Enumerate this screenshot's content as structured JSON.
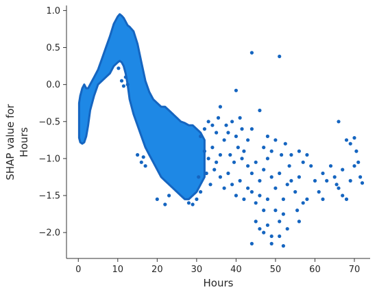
{
  "chart_data": {
    "type": "scatter",
    "title": "",
    "xlabel": "Hours",
    "ylabel_lines": [
      "SHAP value for",
      "Hours"
    ],
    "xlim": [
      -3,
      74
    ],
    "ylim": [
      -2.35,
      1.05
    ],
    "xticks": [
      0,
      10,
      20,
      30,
      40,
      50,
      60,
      70
    ],
    "xtick_labels": [
      "0",
      "10",
      "20",
      "30",
      "40",
      "50",
      "60",
      "70"
    ],
    "yticks": [
      1.0,
      0.5,
      0.0,
      -0.5,
      -1.0,
      -1.5,
      -2.0
    ],
    "ytick_labels": [
      "1.0",
      "0.5",
      "0.0",
      "−0.5",
      "−1.0",
      "−1.5",
      "−2.0"
    ],
    "grid": false,
    "colors": {
      "dense": "#1e88e5",
      "sparse": "#1565c0",
      "axis": "#333333"
    },
    "dense_band": {
      "x": [
        0.2,
        0.5,
        1,
        1.5,
        2,
        2.5,
        3,
        4,
        5,
        6,
        7,
        8,
        9,
        10,
        10.5,
        11,
        11.5,
        12,
        12.5,
        13,
        14,
        15,
        16,
        17,
        18,
        19,
        20,
        21,
        22,
        23,
        24,
        25,
        26,
        27,
        28,
        29,
        30,
        31,
        32
      ],
      "y_top": [
        -0.25,
        -0.15,
        -0.05,
        0.0,
        -0.05,
        -0.05,
        0.0,
        0.1,
        0.2,
        0.35,
        0.5,
        0.65,
        0.82,
        0.92,
        0.95,
        0.93,
        0.9,
        0.85,
        0.8,
        0.78,
        0.72,
        0.55,
        0.3,
        0.05,
        -0.1,
        -0.2,
        -0.25,
        -0.3,
        -0.3,
        -0.35,
        -0.4,
        -0.45,
        -0.5,
        -0.52,
        -0.55,
        -0.55,
        -0.6,
        -0.65,
        -0.75
      ],
      "y_bottom": [
        -0.72,
        -0.78,
        -0.8,
        -0.78,
        -0.7,
        -0.55,
        -0.35,
        -0.15,
        0.0,
        0.05,
        0.1,
        0.15,
        0.25,
        0.3,
        0.32,
        0.3,
        0.25,
        0.15,
        0.0,
        -0.2,
        -0.4,
        -0.55,
        -0.7,
        -0.85,
        -0.95,
        -1.05,
        -1.15,
        -1.25,
        -1.3,
        -1.35,
        -1.4,
        -1.45,
        -1.5,
        -1.55,
        -1.55,
        -1.5,
        -1.45,
        -1.35,
        -1.25
      ]
    },
    "points": [
      {
        "x": 10.2,
        "y": 0.22
      },
      {
        "x": 11,
        "y": 0.05
      },
      {
        "x": 11.5,
        "y": -0.02
      },
      {
        "x": 12.5,
        "y": 0.0
      },
      {
        "x": 12,
        "y": 0.1
      },
      {
        "x": 15,
        "y": -0.95
      },
      {
        "x": 16,
        "y": -1.05
      },
      {
        "x": 17,
        "y": -1.1
      },
      {
        "x": 16.5,
        "y": -0.98
      },
      {
        "x": 20,
        "y": -1.55
      },
      {
        "x": 22,
        "y": -1.62
      },
      {
        "x": 23,
        "y": -1.5
      },
      {
        "x": 28,
        "y": -1.6
      },
      {
        "x": 29,
        "y": -1.62
      },
      {
        "x": 30,
        "y": -1.55
      },
      {
        "x": 31,
        "y": -1.45
      },
      {
        "x": 30.5,
        "y": -1.25
      },
      {
        "x": 31,
        "y": -0.7
      },
      {
        "x": 32,
        "y": -0.6
      },
      {
        "x": 33,
        "y": -0.5
      },
      {
        "x": 34,
        "y": -0.55
      },
      {
        "x": 35,
        "y": -0.65
      },
      {
        "x": 35.5,
        "y": -0.45
      },
      {
        "x": 32,
        "y": -0.9
      },
      {
        "x": 33,
        "y": -1.0
      },
      {
        "x": 34,
        "y": -0.85
      },
      {
        "x": 35,
        "y": -1.05
      },
      {
        "x": 36,
        "y": -0.95
      },
      {
        "x": 37,
        "y": -0.75
      },
      {
        "x": 32.5,
        "y": -1.2
      },
      {
        "x": 33.5,
        "y": -1.35
      },
      {
        "x": 34.5,
        "y": -1.15
      },
      {
        "x": 36,
        "y": -1.25
      },
      {
        "x": 37,
        "y": -1.4
      },
      {
        "x": 38,
        "y": -1.2
      },
      {
        "x": 36,
        "y": -0.3
      },
      {
        "x": 37.5,
        "y": -0.55
      },
      {
        "x": 38,
        "y": -0.65
      },
      {
        "x": 39,
        "y": -0.5
      },
      {
        "x": 40,
        "y": -0.7
      },
      {
        "x": 41,
        "y": -0.45
      },
      {
        "x": 38.5,
        "y": -0.95
      },
      {
        "x": 39.5,
        "y": -1.05
      },
      {
        "x": 40.5,
        "y": -0.85
      },
      {
        "x": 41.5,
        "y": -1.0
      },
      {
        "x": 42,
        "y": -0.9
      },
      {
        "x": 39,
        "y": -1.35
      },
      {
        "x": 40,
        "y": -1.5
      },
      {
        "x": 41,
        "y": -1.3
      },
      {
        "x": 42,
        "y": -1.55
      },
      {
        "x": 43,
        "y": -1.4
      },
      {
        "x": 40,
        "y": -0.08
      },
      {
        "x": 41.5,
        "y": -0.6
      },
      {
        "x": 43,
        "y": -0.75
      },
      {
        "x": 44,
        "y": -0.6
      },
      {
        "x": 44,
        "y": 0.43
      },
      {
        "x": 51,
        "y": 0.38
      },
      {
        "x": 43,
        "y": -1.1
      },
      {
        "x": 44,
        "y": -1.2
      },
      {
        "x": 45,
        "y": -1.05
      },
      {
        "x": 46,
        "y": -1.3
      },
      {
        "x": 47,
        "y": -1.15
      },
      {
        "x": 48,
        "y": -1.0
      },
      {
        "x": 44,
        "y": -1.45
      },
      {
        "x": 45,
        "y": -1.6
      },
      {
        "x": 46,
        "y": -1.5
      },
      {
        "x": 47,
        "y": -1.7
      },
      {
        "x": 48,
        "y": -1.55
      },
      {
        "x": 45,
        "y": -1.85
      },
      {
        "x": 46,
        "y": -1.95
      },
      {
        "x": 47,
        "y": -2.0
      },
      {
        "x": 48,
        "y": -1.9
      },
      {
        "x": 49,
        "y": -2.05
      },
      {
        "x": 44,
        "y": -2.15
      },
      {
        "x": 49,
        "y": -2.15
      },
      {
        "x": 52,
        "y": -2.18
      },
      {
        "x": 51,
        "y": -2.05
      },
      {
        "x": 46,
        "y": -0.35
      },
      {
        "x": 47,
        "y": -0.85
      },
      {
        "x": 48,
        "y": -0.7
      },
      {
        "x": 49,
        "y": -0.9
      },
      {
        "x": 49,
        "y": -1.25
      },
      {
        "x": 50,
        "y": -1.4
      },
      {
        "x": 51,
        "y": -1.2
      },
      {
        "x": 52,
        "y": -1.55
      },
      {
        "x": 53,
        "y": -1.35
      },
      {
        "x": 50,
        "y": -1.7
      },
      {
        "x": 51,
        "y": -1.85
      },
      {
        "x": 52,
        "y": -1.75
      },
      {
        "x": 53,
        "y": -1.95
      },
      {
        "x": 50,
        "y": -0.75
      },
      {
        "x": 51.5,
        "y": -0.95
      },
      {
        "x": 52.5,
        "y": -0.8
      },
      {
        "x": 53.5,
        "y": -1.1
      },
      {
        "x": 54,
        "y": -0.95
      },
      {
        "x": 54,
        "y": -1.3
      },
      {
        "x": 55,
        "y": -1.45
      },
      {
        "x": 56,
        "y": -1.25
      },
      {
        "x": 57,
        "y": -1.6
      },
      {
        "x": 55.5,
        "y": -1.7
      },
      {
        "x": 56,
        "y": -0.9
      },
      {
        "x": 57,
        "y": -1.05
      },
      {
        "x": 58,
        "y": -0.95
      },
      {
        "x": 56,
        "y": -1.85
      },
      {
        "x": 58,
        "y": -1.55
      },
      {
        "x": 59,
        "y": -1.1
      },
      {
        "x": 60,
        "y": -1.3
      },
      {
        "x": 61,
        "y": -1.45
      },
      {
        "x": 62,
        "y": -1.55
      },
      {
        "x": 62,
        "y": -1.2
      },
      {
        "x": 63,
        "y": -1.3
      },
      {
        "x": 64,
        "y": -1.1
      },
      {
        "x": 65,
        "y": -1.25
      },
      {
        "x": 66,
        "y": -1.4
      },
      {
        "x": 67,
        "y": -1.15
      },
      {
        "x": 65.5,
        "y": -1.35
      },
      {
        "x": 66,
        "y": -0.5
      },
      {
        "x": 67,
        "y": -1.5
      },
      {
        "x": 68,
        "y": -1.55
      },
      {
        "x": 69,
        "y": -1.3
      },
      {
        "x": 68,
        "y": -0.75
      },
      {
        "x": 69,
        "y": -0.8
      },
      {
        "x": 70,
        "y": -0.72
      },
      {
        "x": 70.5,
        "y": -0.9
      },
      {
        "x": 70,
        "y": -1.1
      },
      {
        "x": 71,
        "y": -1.05
      },
      {
        "x": 71.5,
        "y": -1.25
      },
      {
        "x": 72,
        "y": -1.33
      }
    ]
  }
}
